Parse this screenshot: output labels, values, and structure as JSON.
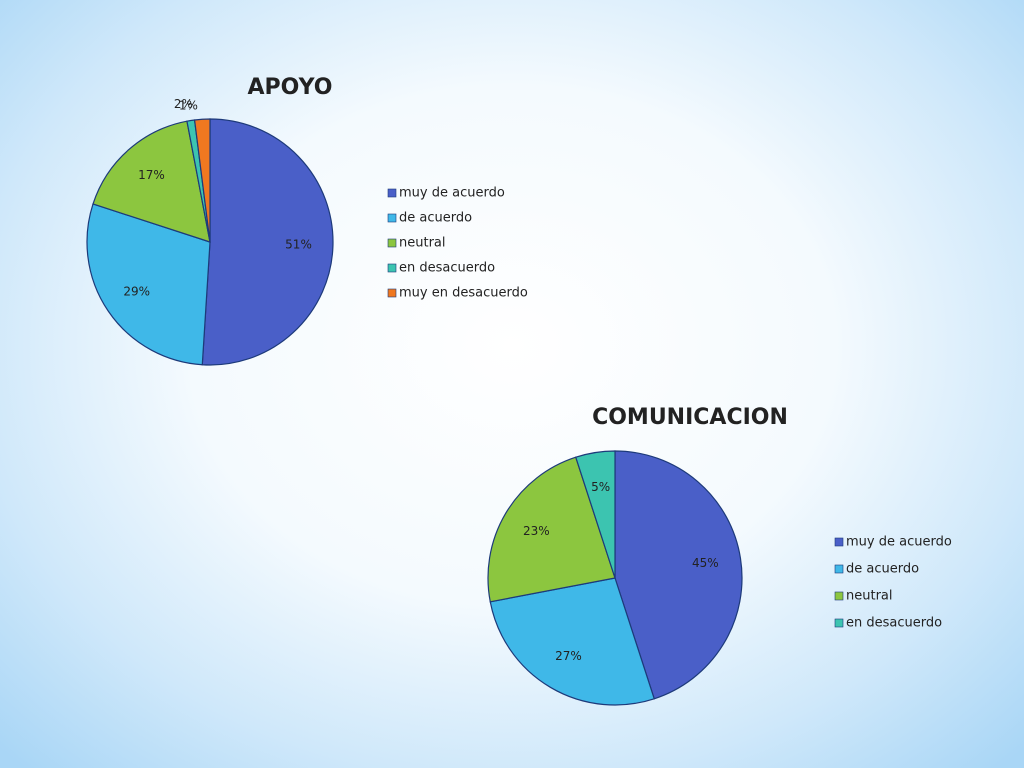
{
  "chart_data": [
    {
      "type": "pie",
      "title": "APOYO",
      "categories": [
        "muy de acuerdo",
        "de acuerdo",
        "neutral",
        "en desacuerdo",
        "muy en desacuerdo"
      ],
      "values": [
        51,
        29,
        17,
        1,
        2
      ],
      "value_labels": [
        "51%",
        "29%",
        "17%",
        "1%",
        "2%"
      ],
      "colors": [
        "#4a5fc8",
        "#3fb8e8",
        "#8cc63f",
        "#3cc4b0",
        "#f07820"
      ],
      "legend": "right"
    },
    {
      "type": "pie",
      "title": "COMUNICACION",
      "categories": [
        "muy de acuerdo",
        "de acuerdo",
        "neutral",
        "en desacuerdo"
      ],
      "values": [
        45,
        27,
        23,
        5
      ],
      "value_labels": [
        "45%",
        "27%",
        "23%",
        "5%"
      ],
      "colors": [
        "#4a5fc8",
        "#3fb8e8",
        "#8cc63f",
        "#3cc4b0"
      ],
      "legend": "right"
    }
  ]
}
